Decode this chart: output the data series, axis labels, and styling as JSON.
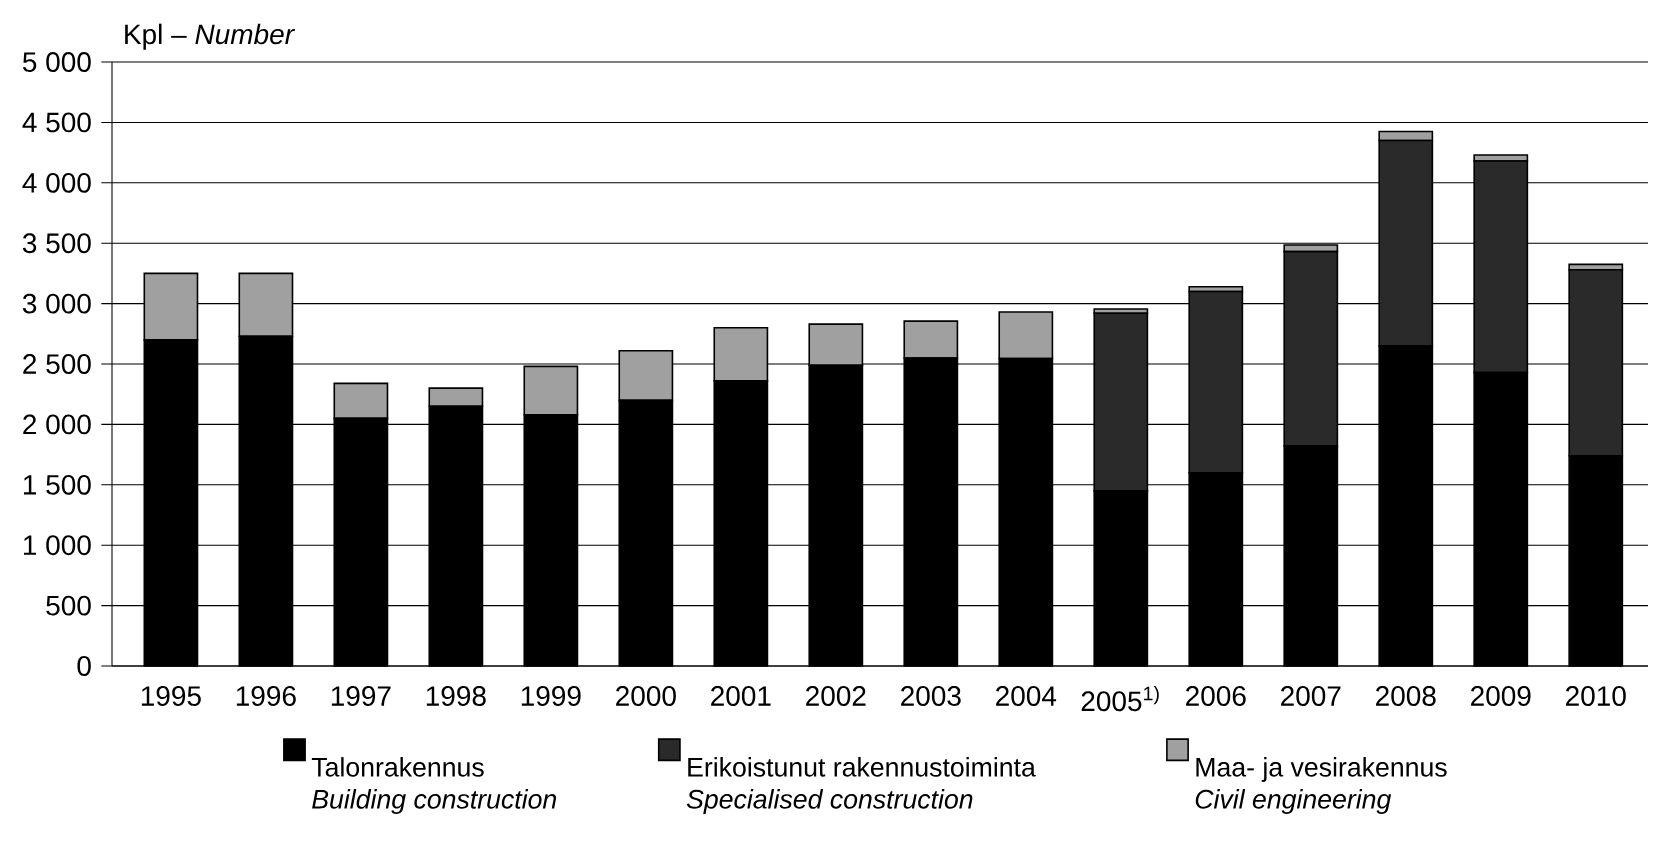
{
  "chart_data": {
    "type": "bar",
    "stacked": true,
    "ylabel": "Kpl – *Number*",
    "categories": [
      "1995",
      "1996",
      "1997",
      "1998",
      "1999",
      "2000",
      "2001",
      "2002",
      "2003",
      "2004",
      "2005$^{1)}$",
      "2006",
      "2007",
      "2008",
      "2009",
      "2010"
    ],
    "series": [
      {
        "name": "Talonrakennus *Building construction*",
        "color": "#000000",
        "values": [
          2700,
          2730,
          2050,
          2150,
          2080,
          2200,
          2360,
          2490,
          2550,
          2545,
          1450,
          1600,
          1820,
          2650,
          2430,
          1740
        ]
      },
      {
        "name": "Erikoistunut rakennustoiminta *Specialised construction*",
        "color": "#2a2a2a",
        "values": [
          0,
          0,
          0,
          0,
          0,
          0,
          0,
          0,
          0,
          0,
          1470,
          1500,
          1610,
          1700,
          1750,
          1540
        ]
      },
      {
        "name": "Maa- ja vesirakennus *Civil engineering*",
        "color": "#a0a0a0",
        "values": [
          550,
          520,
          290,
          150,
          400,
          410,
          440,
          340,
          305,
          385,
          35,
          40,
          55,
          75,
          50,
          45
        ]
      }
    ],
    "ylim": [
      0,
      5000
    ],
    "yticks": [
      0,
      500,
      {
        "value": 1000,
        "label": "1 000"
      },
      {
        "value": 1500,
        "label": "1 500"
      },
      {
        "value": 2000,
        "label": "2 000"
      },
      {
        "value": 2500,
        "label": "2 500"
      },
      {
        "value": 3000,
        "label": "3 000"
      },
      {
        "value": 3500,
        "label": "3 500"
      },
      {
        "value": 4000,
        "label": "4 000"
      },
      {
        "value": 4500,
        "label": "4 500"
      },
      {
        "value": 5000,
        "label": "5 000"
      }
    ],
    "grid": "y",
    "legend": "bottom"
  }
}
